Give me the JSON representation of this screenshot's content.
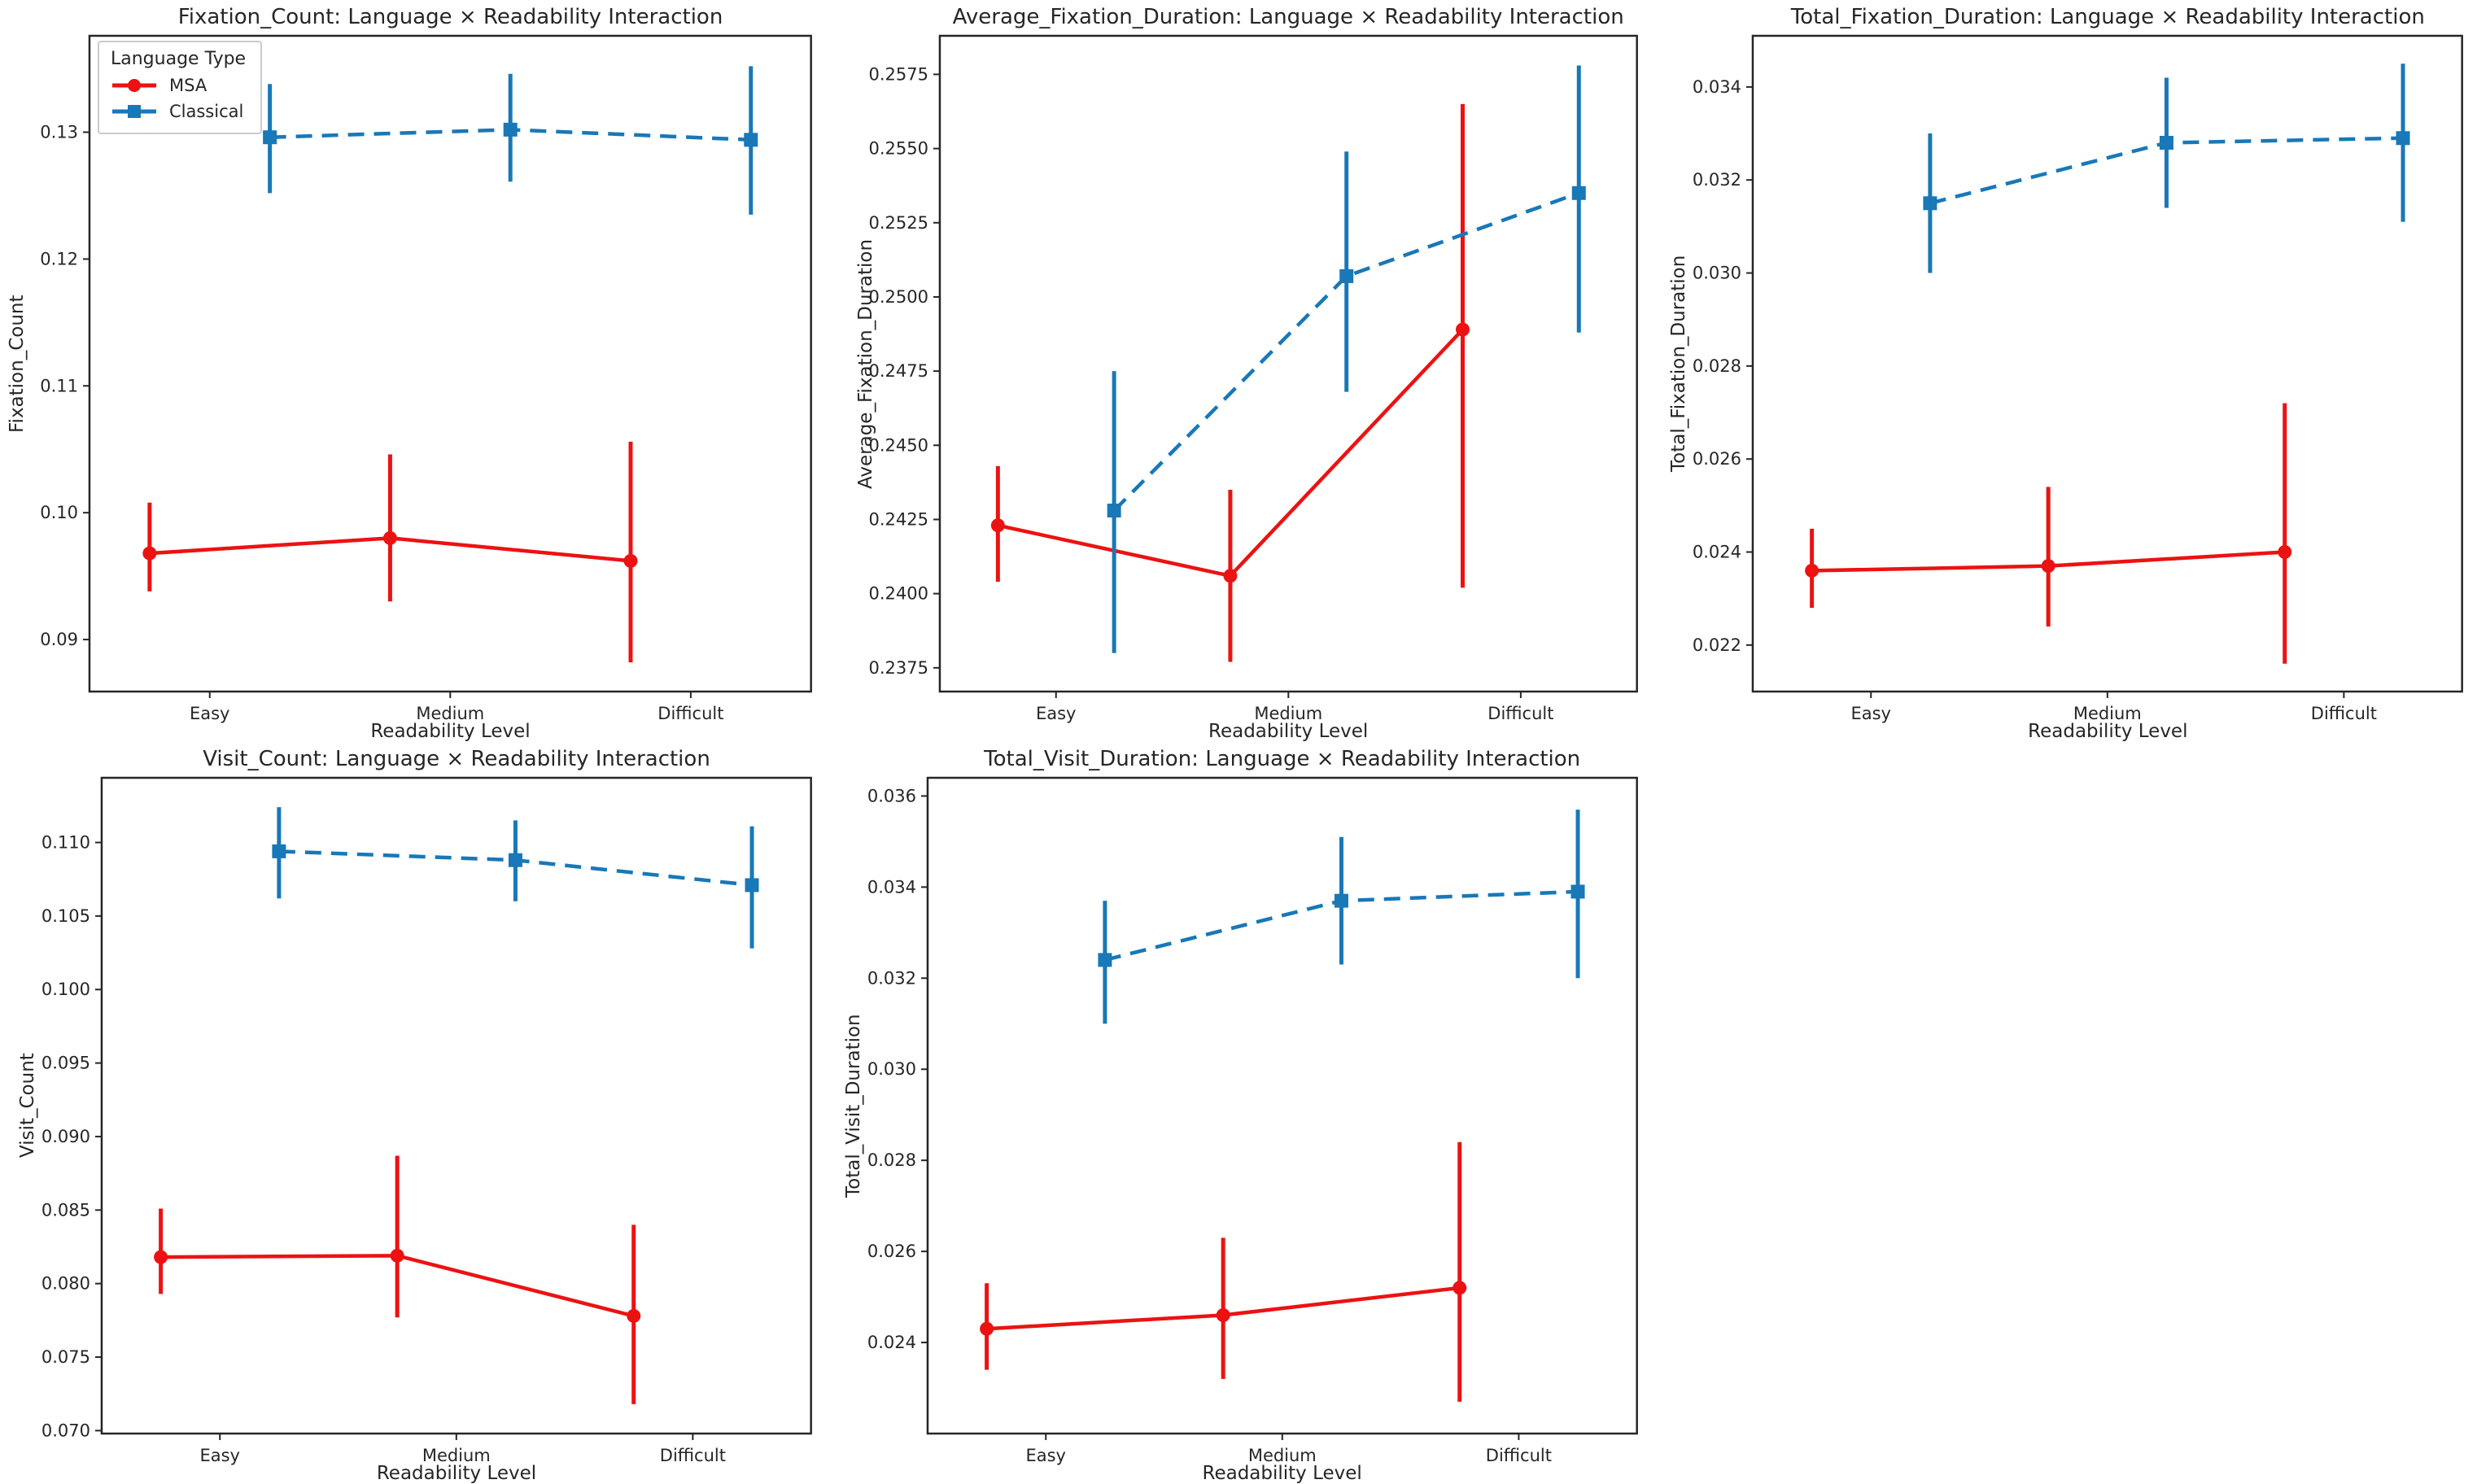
{
  "figure": {
    "background": "#ffffff"
  },
  "colors": {
    "msa": "#ec1212",
    "classical": "#1878b8",
    "axis": "#262626",
    "text": "#262626",
    "legend_border": "#cccccc"
  },
  "legend": {
    "title": "Language Type",
    "entries": [
      {
        "label": "MSA",
        "series": "msa",
        "marker": "circle",
        "line": "solid"
      },
      {
        "label": "Classical",
        "series": "classical",
        "marker": "square",
        "line": "dashed"
      }
    ]
  },
  "shared": {
    "categories": [
      "Easy",
      "Medium",
      "Difficult"
    ],
    "xlabel": "Readability Level"
  },
  "chart_data": [
    {
      "type": "line",
      "title": "Fixation_Count: Language × Readability Interaction",
      "ylabel": "Fixation_Count",
      "xlabel": "Readability Level",
      "categories": [
        "Easy",
        "Medium",
        "Difficult"
      ],
      "ylim": [
        0.0859,
        0.1376
      ],
      "yticks": [
        0.09,
        0.1,
        0.11,
        0.12,
        0.13
      ],
      "ytick_decimals": 2,
      "legend_position": "upper-left",
      "series": [
        {
          "name": "MSA",
          "color_key": "msa",
          "marker": "circle",
          "dash": false,
          "values": [
            0.0968,
            0.098,
            0.0962
          ],
          "err_low": [
            0.0938,
            0.093,
            0.0882
          ],
          "err_high": [
            0.1008,
            0.1046,
            0.1056
          ]
        },
        {
          "name": "Classical",
          "color_key": "classical",
          "marker": "square",
          "dash": true,
          "values": [
            0.1296,
            0.1302,
            0.1294
          ],
          "err_low": [
            0.1252,
            0.1261,
            0.1235
          ],
          "err_high": [
            0.1338,
            0.1346,
            0.1352
          ]
        }
      ]
    },
    {
      "type": "line",
      "title": "Average_Fixation_Duration: Language × Readability Interaction",
      "ylabel": "Average_Fixation_Duration",
      "xlabel": "Readability Level",
      "categories": [
        "Easy",
        "Medium",
        "Difficult"
      ],
      "ylim": [
        0.2367,
        0.2588
      ],
      "yticks": [
        0.2375,
        0.24,
        0.2425,
        0.245,
        0.2475,
        0.25,
        0.2525,
        0.255,
        0.2575
      ],
      "ytick_decimals": 4,
      "legend_position": null,
      "series": [
        {
          "name": "MSA",
          "color_key": "msa",
          "marker": "circle",
          "dash": false,
          "values": [
            0.2423,
            0.2406,
            0.2489
          ],
          "err_low": [
            0.2404,
            0.2377,
            0.2402
          ],
          "err_high": [
            0.2443,
            0.2435,
            0.2565
          ]
        },
        {
          "name": "Classical",
          "color_key": "classical",
          "marker": "square",
          "dash": true,
          "values": [
            0.2428,
            0.2507,
            0.2535
          ],
          "err_low": [
            0.238,
            0.2468,
            0.2488
          ],
          "err_high": [
            0.2475,
            0.2549,
            0.2578
          ]
        }
      ]
    },
    {
      "type": "line",
      "title": "Total_Fixation_Duration: Language × Readability Interaction",
      "ylabel": "Total_Fixation_Duration",
      "xlabel": "Readability Level",
      "categories": [
        "Easy",
        "Medium",
        "Difficult"
      ],
      "ylim": [
        0.021,
        0.0351
      ],
      "yticks": [
        0.022,
        0.024,
        0.026,
        0.028,
        0.03,
        0.032,
        0.034
      ],
      "ytick_decimals": 3,
      "legend_position": null,
      "series": [
        {
          "name": "MSA",
          "color_key": "msa",
          "marker": "circle",
          "dash": false,
          "values": [
            0.0236,
            0.0237,
            0.024
          ],
          "err_low": [
            0.0228,
            0.0224,
            0.0216
          ],
          "err_high": [
            0.0245,
            0.0254,
            0.0272
          ]
        },
        {
          "name": "Classical",
          "color_key": "classical",
          "marker": "square",
          "dash": true,
          "values": [
            0.0315,
            0.0328,
            0.0329
          ],
          "err_low": [
            0.03,
            0.0314,
            0.0311
          ],
          "err_high": [
            0.033,
            0.0342,
            0.0345
          ]
        }
      ]
    },
    {
      "type": "line",
      "title": "Visit_Count: Language × Readability Interaction",
      "ylabel": "Visit_Count",
      "xlabel": "Readability Level",
      "categories": [
        "Easy",
        "Medium",
        "Difficult"
      ],
      "ylim": [
        0.0698,
        0.1144
      ],
      "yticks": [
        0.07,
        0.075,
        0.08,
        0.085,
        0.09,
        0.095,
        0.1,
        0.105,
        0.11
      ],
      "ytick_decimals": 3,
      "legend_position": null,
      "series": [
        {
          "name": "MSA",
          "color_key": "msa",
          "marker": "circle",
          "dash": false,
          "values": [
            0.0818,
            0.0819,
            0.0778
          ],
          "err_low": [
            0.0793,
            0.0777,
            0.0718
          ],
          "err_high": [
            0.0851,
            0.0887,
            0.084
          ]
        },
        {
          "name": "Classical",
          "color_key": "classical",
          "marker": "square",
          "dash": true,
          "values": [
            0.1094,
            0.1088,
            0.1071
          ],
          "err_low": [
            0.1062,
            0.106,
            0.1028
          ],
          "err_high": [
            0.1124,
            0.1115,
            0.1111
          ]
        }
      ]
    },
    {
      "type": "line",
      "title": "Total_Visit_Duration: Language × Readability Interaction",
      "ylabel": "Total_Visit_Duration",
      "xlabel": "Readability Level",
      "categories": [
        "Easy",
        "Medium",
        "Difficult"
      ],
      "ylim": [
        0.022,
        0.0364
      ],
      "yticks": [
        0.024,
        0.026,
        0.028,
        0.03,
        0.032,
        0.034,
        0.036
      ],
      "ytick_decimals": 3,
      "legend_position": null,
      "series": [
        {
          "name": "MSA",
          "color_key": "msa",
          "marker": "circle",
          "dash": false,
          "values": [
            0.0243,
            0.0246,
            0.0252
          ],
          "err_low": [
            0.0234,
            0.0232,
            0.0227
          ],
          "err_high": [
            0.0253,
            0.0263,
            0.0284
          ]
        },
        {
          "name": "Classical",
          "color_key": "classical",
          "marker": "square",
          "dash": true,
          "values": [
            0.0324,
            0.0337,
            0.0339
          ],
          "err_low": [
            0.031,
            0.0323,
            0.032
          ],
          "err_high": [
            0.0337,
            0.0351,
            0.0357
          ]
        }
      ]
    }
  ]
}
